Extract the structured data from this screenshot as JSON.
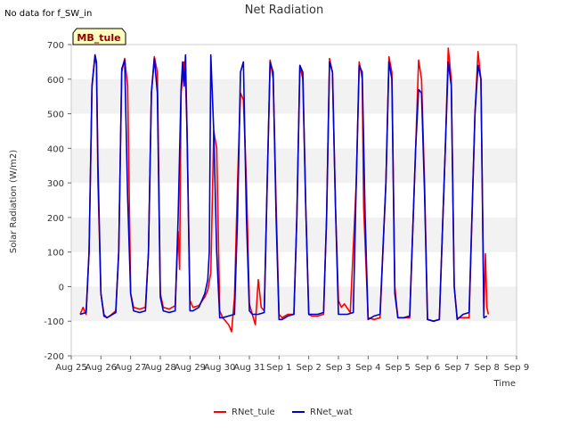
{
  "note": "No data for f_SW_in",
  "chart_data": {
    "type": "line",
    "title": "Net Radiation",
    "xlabel": "Time",
    "ylabel": "Solar Radiation (W/m2)",
    "ylim": [
      -200,
      700
    ],
    "yticks": [
      -200,
      -100,
      0,
      100,
      200,
      300,
      400,
      500,
      600,
      700
    ],
    "xlim": [
      0,
      15
    ],
    "xticks": [
      "Aug 25",
      "Aug 26",
      "Aug 27",
      "Aug 28",
      "Aug 29",
      "Aug 30",
      "Aug 31",
      "Sep 1",
      "Sep 2",
      "Sep 3",
      "Sep 4",
      "Sep 5",
      "Sep 6",
      "Sep 7",
      "Sep 8",
      "Sep 9"
    ],
    "grid": "horizontal bands",
    "tag": "MB_tule",
    "legend_position": "bottom-center",
    "series": [
      {
        "name": "RNet_tule",
        "color": "#ff0000",
        "points": [
          [
            0.3,
            -80
          ],
          [
            0.4,
            -60
          ],
          [
            0.5,
            -80
          ],
          [
            0.6,
            100
          ],
          [
            0.7,
            580
          ],
          [
            0.8,
            670
          ],
          [
            0.85,
            640
          ],
          [
            0.9,
            300
          ],
          [
            1.0,
            -20
          ],
          [
            1.1,
            -80
          ],
          [
            1.2,
            -90
          ],
          [
            1.3,
            -85
          ],
          [
            1.5,
            -70
          ],
          [
            1.6,
            100
          ],
          [
            1.7,
            620
          ],
          [
            1.8,
            660
          ],
          [
            1.9,
            580
          ],
          [
            2.0,
            -20
          ],
          [
            2.1,
            -60
          ],
          [
            2.3,
            -65
          ],
          [
            2.5,
            -60
          ],
          [
            2.6,
            100
          ],
          [
            2.7,
            560
          ],
          [
            2.8,
            665
          ],
          [
            2.9,
            620
          ],
          [
            3.0,
            -20
          ],
          [
            3.1,
            -60
          ],
          [
            3.3,
            -65
          ],
          [
            3.5,
            -55
          ],
          [
            3.6,
            160
          ],
          [
            3.65,
            50
          ],
          [
            3.7,
            560
          ],
          [
            3.8,
            650
          ],
          [
            3.85,
            600
          ],
          [
            3.9,
            450
          ],
          [
            4.0,
            -40
          ],
          [
            4.1,
            -60
          ],
          [
            4.3,
            -55
          ],
          [
            4.5,
            -30
          ],
          [
            4.6,
            -10
          ],
          [
            4.7,
            40
          ],
          [
            4.8,
            450
          ],
          [
            4.9,
            400
          ],
          [
            5.0,
            -70
          ],
          [
            5.1,
            -90
          ],
          [
            5.3,
            -110
          ],
          [
            5.4,
            -130
          ],
          [
            5.5,
            -30
          ],
          [
            5.6,
            300
          ],
          [
            5.7,
            560
          ],
          [
            5.8,
            540
          ],
          [
            5.9,
            300
          ],
          [
            6.0,
            -50
          ],
          [
            6.1,
            -80
          ],
          [
            6.2,
            -110
          ],
          [
            6.3,
            20
          ],
          [
            6.4,
            -60
          ],
          [
            6.5,
            -70
          ],
          [
            6.6,
            300
          ],
          [
            6.7,
            655
          ],
          [
            6.8,
            600
          ],
          [
            6.9,
            240
          ],
          [
            7.0,
            -80
          ],
          [
            7.1,
            -90
          ],
          [
            7.3,
            -80
          ],
          [
            7.5,
            -80
          ],
          [
            7.6,
            200
          ],
          [
            7.7,
            640
          ],
          [
            7.8,
            600
          ],
          [
            7.9,
            230
          ],
          [
            8.0,
            -80
          ],
          [
            8.1,
            -85
          ],
          [
            8.3,
            -85
          ],
          [
            8.5,
            -80
          ],
          [
            8.6,
            200
          ],
          [
            8.7,
            660
          ],
          [
            8.8,
            620
          ],
          [
            8.9,
            230
          ],
          [
            9.0,
            -40
          ],
          [
            9.1,
            -60
          ],
          [
            9.2,
            -50
          ],
          [
            9.4,
            -75
          ],
          [
            9.6,
            300
          ],
          [
            9.7,
            650
          ],
          [
            9.8,
            600
          ],
          [
            9.85,
            230
          ],
          [
            10.0,
            -90
          ],
          [
            10.2,
            -95
          ],
          [
            10.4,
            -90
          ],
          [
            10.6,
            300
          ],
          [
            10.7,
            665
          ],
          [
            10.8,
            620
          ],
          [
            10.9,
            0
          ],
          [
            11.0,
            -90
          ],
          [
            11.2,
            -90
          ],
          [
            11.4,
            -90
          ],
          [
            11.6,
            400
          ],
          [
            11.7,
            655
          ],
          [
            11.8,
            600
          ],
          [
            11.9,
            300
          ],
          [
            12.0,
            -95
          ],
          [
            12.2,
            -100
          ],
          [
            12.4,
            -95
          ],
          [
            12.6,
            400
          ],
          [
            12.7,
            690
          ],
          [
            12.8,
            600
          ],
          [
            12.9,
            0
          ],
          [
            13.0,
            -90
          ],
          [
            13.2,
            -90
          ],
          [
            13.4,
            -90
          ],
          [
            13.6,
            500
          ],
          [
            13.7,
            680
          ],
          [
            13.8,
            600
          ],
          [
            13.9,
            -80
          ],
          [
            13.95,
            95
          ],
          [
            14.0,
            -60
          ],
          [
            14.05,
            -80
          ]
        ]
      },
      {
        "name": "RNet_wat",
        "color": "#0000cc",
        "points": [
          [
            0.3,
            -80
          ],
          [
            0.5,
            -75
          ],
          [
            0.6,
            100
          ],
          [
            0.7,
            580
          ],
          [
            0.8,
            670
          ],
          [
            0.85,
            650
          ],
          [
            0.9,
            350
          ],
          [
            1.0,
            -20
          ],
          [
            1.1,
            -85
          ],
          [
            1.2,
            -90
          ],
          [
            1.3,
            -85
          ],
          [
            1.5,
            -75
          ],
          [
            1.6,
            100
          ],
          [
            1.7,
            630
          ],
          [
            1.8,
            655
          ],
          [
            1.9,
            260
          ],
          [
            2.0,
            -20
          ],
          [
            2.1,
            -70
          ],
          [
            2.3,
            -75
          ],
          [
            2.5,
            -70
          ],
          [
            2.6,
            100
          ],
          [
            2.7,
            560
          ],
          [
            2.8,
            660
          ],
          [
            2.9,
            560
          ],
          [
            3.0,
            -30
          ],
          [
            3.1,
            -70
          ],
          [
            3.3,
            -75
          ],
          [
            3.5,
            -70
          ],
          [
            3.6,
            200
          ],
          [
            3.7,
            570
          ],
          [
            3.75,
            650
          ],
          [
            3.8,
            580
          ],
          [
            3.85,
            670
          ],
          [
            3.9,
            450
          ],
          [
            4.0,
            -70
          ],
          [
            4.1,
            -70
          ],
          [
            4.3,
            -60
          ],
          [
            4.5,
            -20
          ],
          [
            4.6,
            20
          ],
          [
            4.65,
            100
          ],
          [
            4.7,
            670
          ],
          [
            4.8,
            450
          ],
          [
            4.9,
            100
          ],
          [
            5.0,
            -90
          ],
          [
            5.1,
            -90
          ],
          [
            5.3,
            -85
          ],
          [
            5.5,
            -80
          ],
          [
            5.6,
            200
          ],
          [
            5.7,
            620
          ],
          [
            5.8,
            650
          ],
          [
            5.9,
            200
          ],
          [
            6.0,
            -70
          ],
          [
            6.1,
            -80
          ],
          [
            6.3,
            -80
          ],
          [
            6.5,
            -75
          ],
          [
            6.6,
            300
          ],
          [
            6.7,
            650
          ],
          [
            6.8,
            620
          ],
          [
            6.9,
            200
          ],
          [
            7.0,
            -95
          ],
          [
            7.1,
            -95
          ],
          [
            7.3,
            -85
          ],
          [
            7.5,
            -80
          ],
          [
            7.6,
            200
          ],
          [
            7.7,
            640
          ],
          [
            7.8,
            620
          ],
          [
            7.9,
            230
          ],
          [
            8.0,
            -80
          ],
          [
            8.1,
            -80
          ],
          [
            8.3,
            -80
          ],
          [
            8.5,
            -75
          ],
          [
            8.6,
            200
          ],
          [
            8.7,
            650
          ],
          [
            8.8,
            620
          ],
          [
            8.9,
            230
          ],
          [
            9.0,
            -80
          ],
          [
            9.1,
            -80
          ],
          [
            9.3,
            -80
          ],
          [
            9.5,
            -75
          ],
          [
            9.6,
            300
          ],
          [
            9.7,
            640
          ],
          [
            9.8,
            620
          ],
          [
            9.9,
            200
          ],
          [
            10.0,
            -95
          ],
          [
            10.2,
            -85
          ],
          [
            10.4,
            -80
          ],
          [
            10.6,
            300
          ],
          [
            10.7,
            650
          ],
          [
            10.8,
            600
          ],
          [
            10.9,
            -20
          ],
          [
            11.0,
            -90
          ],
          [
            11.2,
            -90
          ],
          [
            11.4,
            -85
          ],
          [
            11.6,
            400
          ],
          [
            11.7,
            570
          ],
          [
            11.8,
            560
          ],
          [
            11.9,
            270
          ],
          [
            12.0,
            -95
          ],
          [
            12.2,
            -100
          ],
          [
            12.4,
            -95
          ],
          [
            12.6,
            400
          ],
          [
            12.7,
            650
          ],
          [
            12.8,
            580
          ],
          [
            12.9,
            0
          ],
          [
            13.0,
            -95
          ],
          [
            13.2,
            -80
          ],
          [
            13.4,
            -75
          ],
          [
            13.6,
            500
          ],
          [
            13.7,
            640
          ],
          [
            13.8,
            600
          ],
          [
            13.9,
            -90
          ],
          [
            14.0,
            -85
          ]
        ]
      }
    ]
  }
}
